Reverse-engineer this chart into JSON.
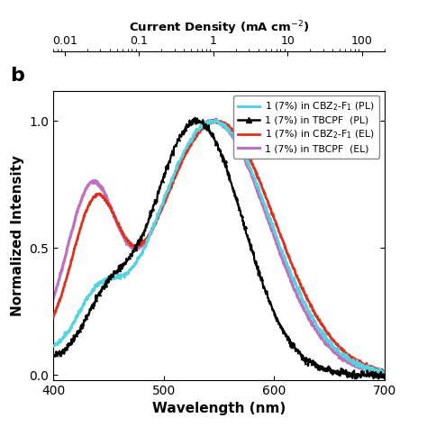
{
  "title_label": "b",
  "xlabel": "Wavelength (nm)",
  "ylabel": "Normalized Intensity",
  "xlim": [
    400,
    700
  ],
  "ylim": [
    -0.02,
    1.12
  ],
  "xticks": [
    400,
    500,
    600,
    700
  ],
  "yticks": [
    0.0,
    0.5,
    1.0
  ],
  "top_xlabel": "Current Density (mA cm$^{-2}$)",
  "colors": {
    "cbz_pl": "#55d4e0",
    "tbcpf_pl": "#000000",
    "cbz_el": "#e03020",
    "tbcpf_el": "#c070c0"
  },
  "peak1_cbz_pl": {
    "mu": 440,
    "sigma": 19,
    "amp": 0.21
  },
  "peak2_cbz_pl": {
    "mu": 545,
    "sigma": 52,
    "amp": 1.0
  },
  "peak1_tbcpf_pl": {
    "mu": 447,
    "sigma": 20,
    "amp": 0.22
  },
  "peak2_tbcpf_pl": {
    "mu": 530,
    "sigma": 42,
    "amp": 1.05
  },
  "peak1_cbz_el": {
    "mu": 438,
    "sigma": 21,
    "amp": 0.55
  },
  "peak2_cbz_el": {
    "mu": 548,
    "sigma": 53,
    "amp": 0.97
  },
  "peak1_tbcpf_el": {
    "mu": 435,
    "sigma": 22,
    "amp": 0.64
  },
  "peak2_tbcpf_el": {
    "mu": 545,
    "sigma": 50,
    "amp": 1.0
  },
  "noise_scale": 0.006,
  "lw_pl": 1.6,
  "lw_el": 2.0
}
